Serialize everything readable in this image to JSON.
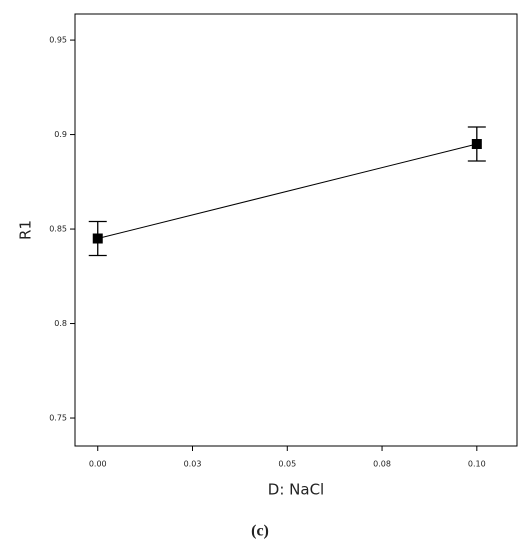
{
  "chart_data": {
    "type": "line",
    "x_label": "D: NaCl",
    "y_label": "R1",
    "caption": "(c)",
    "x": [
      0,
      0.1
    ],
    "series": [
      {
        "color": "#000000",
        "values": [
          0.845,
          0.895
        ],
        "errors": [
          0.009,
          0.009
        ]
      }
    ],
    "xlim": [
      -0.006,
      0.1106
    ],
    "ylim": [
      0.7352,
      0.9638
    ],
    "xticks": [
      {
        "value": 0,
        "label": "0.00"
      },
      {
        "value": 0.025,
        "label": "0.03"
      },
      {
        "value": 0.05,
        "label": "0.05"
      },
      {
        "value": 0.075,
        "label": "0.08"
      },
      {
        "value": 0.1,
        "label": "0.10"
      }
    ],
    "yticks": [
      0.75,
      0.8,
      0.85,
      0.9,
      0.95
    ],
    "grid": false
  }
}
